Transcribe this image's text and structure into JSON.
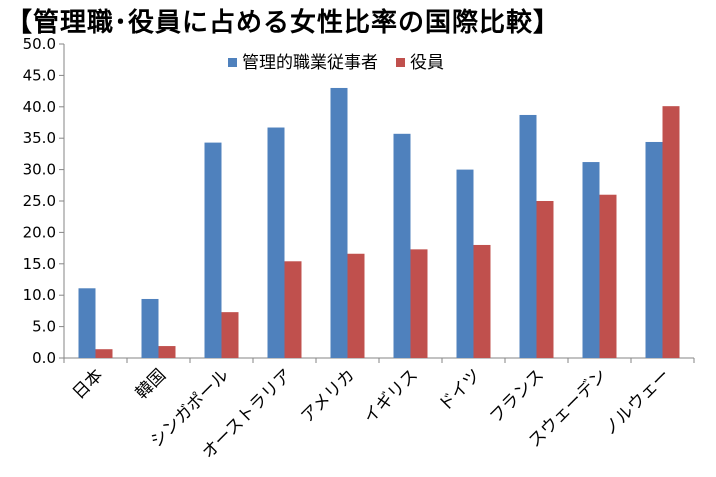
{
  "chart_data": {
    "type": "bar",
    "title": "【管理職･役員に占める女性比率の国際比較】",
    "categories": [
      "日本",
      "韓国",
      "シンガポール",
      "オーストラリア",
      "アメリカ",
      "イギリス",
      "ドイツ",
      "フランス",
      "スウェーデン",
      "ノルウェー"
    ],
    "series": [
      {
        "name": "管理的職業従事者",
        "color": "#4F81BD",
        "values": [
          11.1,
          9.4,
          34.3,
          36.7,
          43.0,
          35.7,
          30.0,
          38.7,
          31.2,
          34.4
        ]
      },
      {
        "name": "役員",
        "color": "#C0504D",
        "values": [
          1.4,
          1.9,
          7.3,
          15.4,
          16.6,
          17.3,
          18.0,
          25.0,
          26.0,
          40.1
        ]
      }
    ],
    "ylim": [
      0,
      50
    ],
    "yticks": [
      "0.0",
      "5.0",
      "10.0",
      "15.0",
      "20.0",
      "25.0",
      "30.0",
      "35.0",
      "40.0",
      "45.0",
      "50.0"
    ],
    "xlabel": "",
    "ylabel": "",
    "grid": false,
    "legend_position": "top-center"
  }
}
